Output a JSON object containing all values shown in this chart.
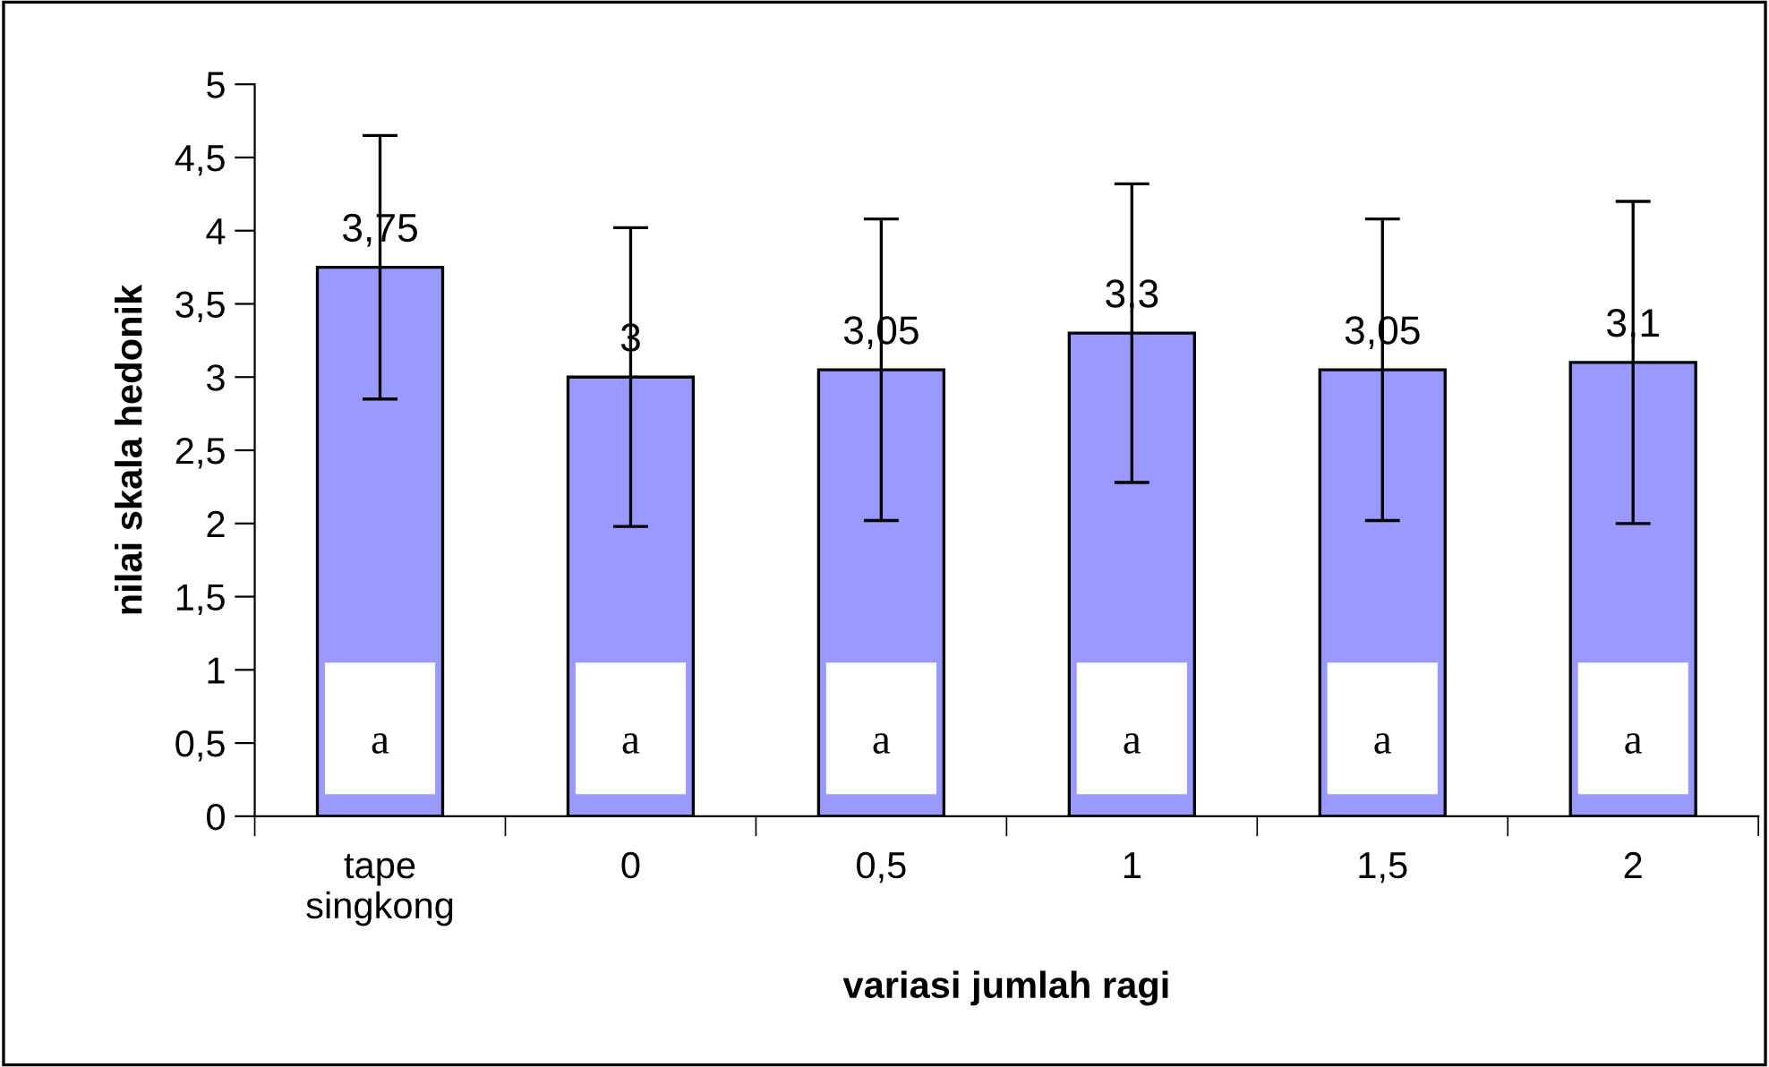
{
  "chart_data": {
    "type": "bar",
    "xlabel": "variasi jumlah ragi",
    "ylabel": "nilai skala hedonik",
    "categories": [
      "tape\nsingkong",
      "0",
      "0,5",
      "1",
      "1,5",
      "2"
    ],
    "values": [
      3.75,
      3,
      3.05,
      3.3,
      3.05,
      3.1
    ],
    "value_labels": [
      "3,75",
      "3",
      "3,05",
      "3,3",
      "3,05",
      "3,1"
    ],
    "errors": [
      0.9,
      1.02,
      1.03,
      1.02,
      1.03,
      1.1
    ],
    "color": "#9999ff",
    "ylim": [
      0,
      5
    ],
    "yticks": [
      0,
      {
        "value": 0.5,
        "label": "0,5"
      },
      1,
      {
        "value": 1.5,
        "label": "1,5"
      },
      2,
      {
        "value": 2.5,
        "label": "2,5"
      },
      3,
      {
        "value": 3.5,
        "label": "3,5"
      },
      4,
      {
        "value": 4.5,
        "label": "4,5"
      },
      5
    ],
    "grid": false,
    "legend": false,
    "annotations": [
      "a",
      "a",
      "a",
      "a",
      "a",
      "a"
    ]
  }
}
